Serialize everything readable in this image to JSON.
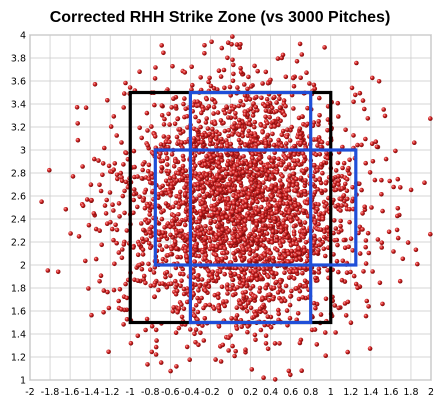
{
  "chart_data": {
    "type": "scatter",
    "title": "Corrected RHH Strike Zone (vs 3000 Pitches)",
    "xlabel": "",
    "ylabel": "",
    "xlim": [
      -2,
      2
    ],
    "ylim": [
      1,
      4
    ],
    "x_ticks": [
      "-2",
      "-1.8",
      "-1.6",
      "-1.4",
      "-1.2",
      "-1",
      "-0.8",
      "-0.6",
      "-0.4",
      "-0.2",
      "0",
      "0.2",
      "0.4",
      "0.6",
      "0.8",
      "1",
      "1.2",
      "1.4",
      "1.6",
      "1.8",
      "2"
    ],
    "y_ticks": [
      "1",
      "1.2",
      "1.4",
      "1.6",
      "1.8",
      "2",
      "2.2",
      "2.4",
      "2.6",
      "2.8",
      "3",
      "3.2",
      "3.4",
      "3.6",
      "3.8",
      "4"
    ],
    "grid": true,
    "series": [
      {
        "kind": "points",
        "count": 3000,
        "color": "#cc1f1f",
        "x_mean": 0.1,
        "x_sd": 0.6,
        "y_mean": 2.5,
        "y_sd": 0.55
      }
    ],
    "zones": [
      {
        "label": "",
        "color": "#000000",
        "x": [
          -1.0,
          1.0
        ],
        "y": [
          1.5,
          3.5
        ]
      },
      {
        "label": "",
        "color": "#1f4fd8",
        "x": [
          -0.75,
          1.25
        ],
        "y": [
          2.0,
          3.0
        ]
      },
      {
        "label": "",
        "color": "#1f4fd8",
        "x": [
          -0.4,
          0.8
        ],
        "y": [
          1.5,
          3.5
        ]
      }
    ]
  }
}
